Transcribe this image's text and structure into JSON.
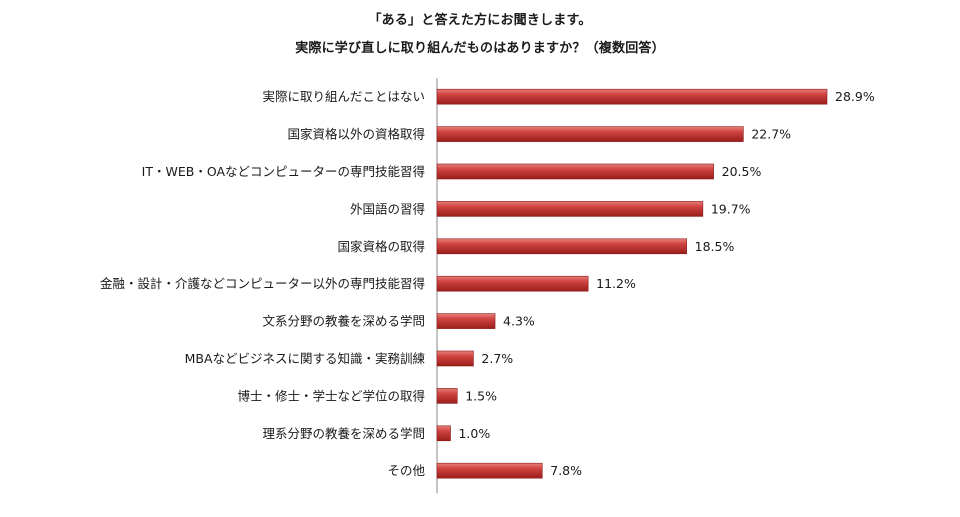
{
  "chart_data": {
    "type": "bar",
    "orientation": "horizontal",
    "title": [
      "「ある」と答えた方にお聞きします。",
      "実際に学び直しに取り組んだものはありますか？（複数回答）"
    ],
    "categories": [
      "実際に取り組んだことはない",
      "国家資格以外の資格取得",
      "IT・WEB・OAなどコンピューターの専門技能習得",
      "外国語の習得",
      "国家資格の取得",
      "金融・設計・介護などコンピューター以外の専門技能習得",
      "文系分野の教養を深める学問",
      "MBAなどビジネスに関する知識・実務訓練",
      "博士・修士・学士など学位の取得",
      "理系分野の教養を深める学問",
      "その他"
    ],
    "values": [
      28.9,
      22.7,
      20.5,
      19.7,
      18.5,
      11.2,
      4.3,
      2.7,
      1.5,
      1.0,
      7.8
    ],
    "value_labels": [
      "28.9%",
      "22.7%",
      "20.5%",
      "19.7%",
      "18.5%",
      "11.2%",
      "4.3%",
      "2.7%",
      "1.5%",
      "1.0%",
      "7.8%"
    ],
    "xlim": [
      0,
      28.9
    ],
    "bar_color": "#c0302c",
    "grid": false,
    "legend": "none"
  }
}
